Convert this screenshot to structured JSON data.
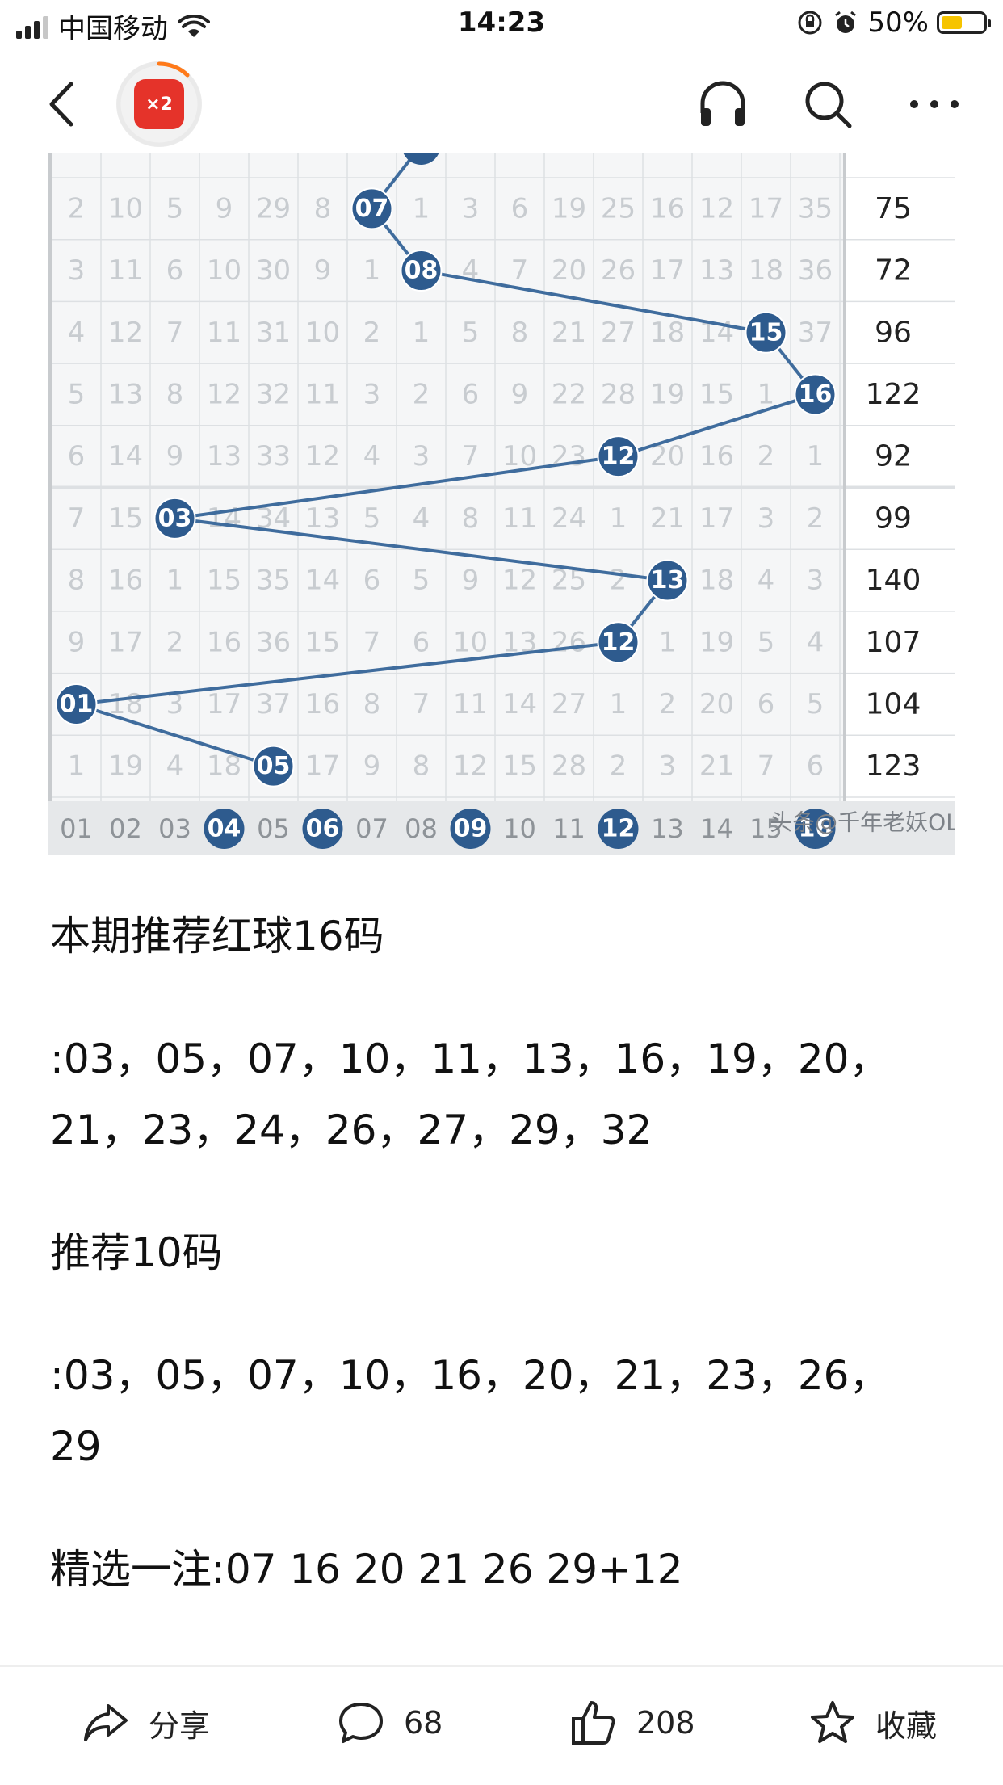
{
  "status_bar": {
    "carrier": "中国移动",
    "time": "14:23",
    "battery_percent": "50%",
    "battery_level": 0.5
  },
  "nav": {
    "avatar_badge": "×2",
    "icons": [
      "back-icon",
      "headphones-icon",
      "search-icon",
      "more-icon"
    ]
  },
  "chart": {
    "rows": [
      [
        "2",
        "10",
        "5",
        "9",
        "29",
        "8",
        "07",
        "1",
        "3",
        "6",
        "19",
        "25",
        "16",
        "12",
        "17",
        "35"
      ],
      [
        "3",
        "11",
        "6",
        "10",
        "30",
        "9",
        "1",
        "08",
        "4",
        "7",
        "20",
        "26",
        "17",
        "13",
        "18",
        "36"
      ],
      [
        "4",
        "12",
        "7",
        "11",
        "31",
        "10",
        "2",
        "1",
        "5",
        "8",
        "21",
        "27",
        "18",
        "14",
        "15",
        "37"
      ],
      [
        "5",
        "13",
        "8",
        "12",
        "32",
        "11",
        "3",
        "2",
        "6",
        "9",
        "22",
        "28",
        "19",
        "15",
        "1",
        "16"
      ],
      [
        "6",
        "14",
        "9",
        "13",
        "33",
        "12",
        "4",
        "3",
        "7",
        "10",
        "23",
        "12",
        "20",
        "16",
        "2",
        "1"
      ],
      [
        "7",
        "15",
        "03",
        "14",
        "34",
        "13",
        "5",
        "4",
        "8",
        "11",
        "24",
        "1",
        "21",
        "17",
        "3",
        "2"
      ],
      [
        "8",
        "16",
        "1",
        "15",
        "35",
        "14",
        "6",
        "5",
        "9",
        "12",
        "25",
        "2",
        "13",
        "18",
        "4",
        "3"
      ],
      [
        "9",
        "17",
        "2",
        "16",
        "36",
        "15",
        "7",
        "6",
        "10",
        "13",
        "26",
        "12",
        "1",
        "19",
        "5",
        "4"
      ],
      [
        "01",
        "18",
        "3",
        "17",
        "37",
        "16",
        "8",
        "7",
        "11",
        "14",
        "27",
        "1",
        "2",
        "20",
        "6",
        "5"
      ],
      [
        "1",
        "19",
        "4",
        "18",
        "05",
        "17",
        "9",
        "8",
        "12",
        "15",
        "28",
        "2",
        "3",
        "21",
        "7",
        "6"
      ]
    ],
    "hits": [
      {
        "row": 0,
        "col": 6,
        "label": "07"
      },
      {
        "row": 1,
        "col": 7,
        "label": "08"
      },
      {
        "row": 2,
        "col": 14,
        "label": "15"
      },
      {
        "row": 3,
        "col": 15,
        "label": "16"
      },
      {
        "row": 4,
        "col": 11,
        "label": "12"
      },
      {
        "row": 5,
        "col": 2,
        "label": "03"
      },
      {
        "row": 6,
        "col": 12,
        "label": "13"
      },
      {
        "row": 7,
        "col": 11,
        "label": "12"
      },
      {
        "row": 8,
        "col": 0,
        "label": "01"
      },
      {
        "row": 9,
        "col": 4,
        "label": "05"
      }
    ],
    "sums": [
      "75",
      "72",
      "96",
      "122",
      "92",
      "99",
      "140",
      "107",
      "104",
      "123"
    ],
    "footer": [
      "01",
      "02",
      "03",
      "04",
      "05",
      "06",
      "07",
      "08",
      "09",
      "10",
      "11",
      "12",
      "13",
      "14",
      "15",
      "16"
    ],
    "footer_highlight": [
      "04",
      "06",
      "09",
      "12",
      "16"
    ],
    "watermark": "头条@千年老妖OL",
    "colors": {
      "ball": "#2e5b8e",
      "line": "#3f6c9d",
      "digits": "#c8ccd0",
      "grid": "#dde0e3",
      "panel": "#f5f6f7"
    }
  },
  "article": {
    "heading1": "本期推荐红球16码",
    "line1": ":03，05，07，10，11，13，16，19，20，",
    "line2": "21，23，24，26，27，29，32",
    "heading2": "推荐10码",
    "line3": ":03，05，07，10，16，20，21，23，26，",
    "line4": "29",
    "pick": "精选一注:07 16 20 21 26 29+12"
  },
  "bottom_bar": {
    "share_label": "分享",
    "comment_count": "68",
    "like_count": "208",
    "favorite_label": "收藏"
  }
}
